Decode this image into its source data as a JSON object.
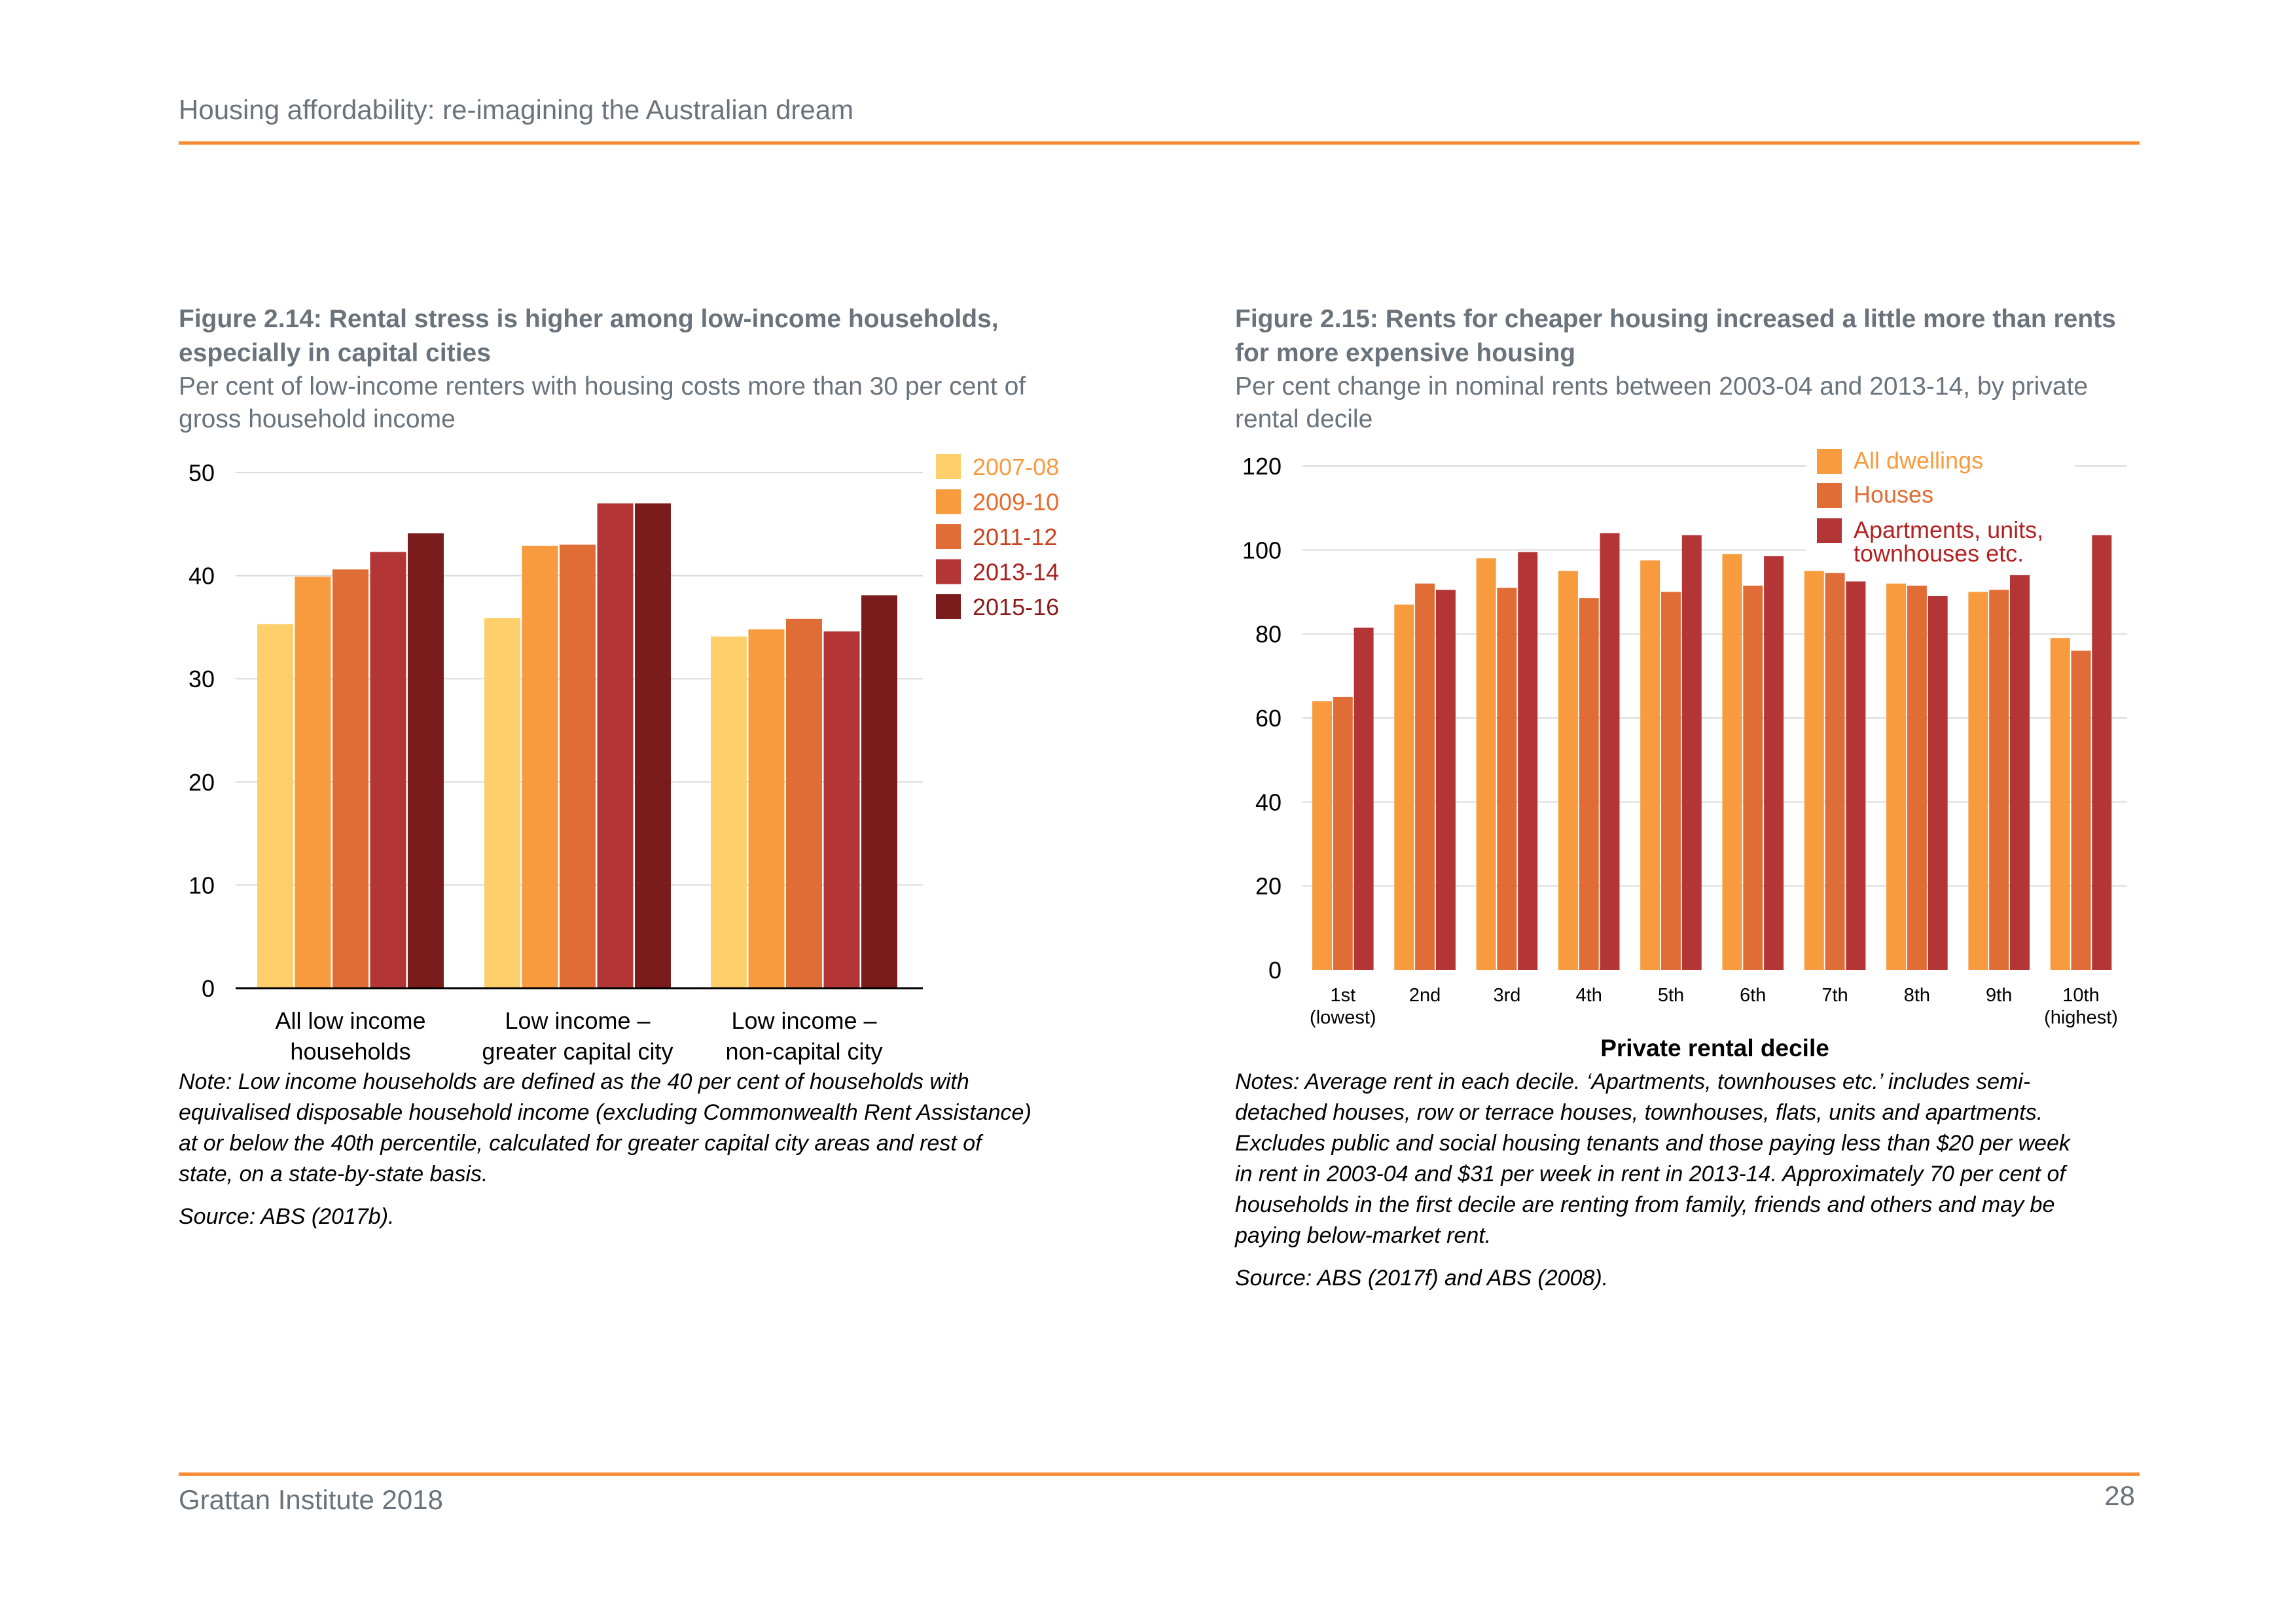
{
  "header": {
    "title": "Housing affordability: re-imagining the Australian dream"
  },
  "footer": {
    "org": "Grattan Institute 2018",
    "page": "28"
  },
  "colors": {
    "accent_rule": "#F68B33",
    "grey_text": "#6A737B",
    "series_2007_08": "#FECF6A",
    "series_2009_10": "#F79B3E",
    "series_2011_12": "#E06D35",
    "series_2013_14": "#B33536",
    "series_2015_16": "#7A1C1C"
  },
  "figure14": {
    "title_line1": "Figure 2.14: Rental stress is higher among low-income households,",
    "title_line2": "especially in capital cities",
    "subtitle_line1": "Per cent of low-income renters with housing costs more than 30 per cent of",
    "subtitle_line2": "gross household income",
    "note_lines": [
      "Note: Low income households are defined as the 40 per cent of households with",
      "equivalised disposable household income (excluding Commonwealth Rent Assistance)",
      "at or below the 40th percentile, calculated for greater capital city areas and rest of",
      "state, on a state-by-state basis."
    ],
    "source": "Source: ABS (2017b)."
  },
  "figure15": {
    "title_line1": "Figure 2.15: Rents for cheaper housing increased a little more than rents",
    "title_line2": "for more expensive housing",
    "subtitle_line1": "Per cent change in nominal rents between 2003-04 and 2013-14, by private",
    "subtitle_line2": "rental decile",
    "note_lines": [
      "Notes: Average rent in each decile. ‘Apartments, townhouses etc.’ includes semi-",
      "detached houses, row or terrace houses, townhouses, flats, units and apartments.",
      "Excludes public and social housing tenants and those paying less than $20 per week",
      "in rent in 2003-04 and $31 per week in rent in 2013-14. Approximately 70 per cent of",
      "households in the first decile are renting from family, friends and others and may be",
      "paying below-market rent."
    ],
    "source": "Source: ABS (2017f) and ABS (2008)."
  },
  "chart_data": [
    {
      "type": "bar",
      "ylim": [
        0,
        50
      ],
      "yticks": [
        0,
        10,
        20,
        30,
        40,
        50
      ],
      "categories": [
        [
          "All low income",
          "households"
        ],
        [
          "Low income –",
          "greater capital city"
        ],
        [
          "Low income –",
          "non-capital city"
        ]
      ],
      "legend": "right",
      "grid": true,
      "series": [
        {
          "name": "2007-08",
          "color": "#FECF6A",
          "label_color": "#F79B3E",
          "values": [
            35.3,
            35.9,
            34.1
          ]
        },
        {
          "name": "2009-10",
          "color": "#F79B3E",
          "label_color": "#E86A2A",
          "values": [
            39.9,
            42.9,
            34.8
          ]
        },
        {
          "name": "2011-12",
          "color": "#E06D35",
          "label_color": "#C8431E",
          "values": [
            40.6,
            43.0,
            35.8
          ]
        },
        {
          "name": "2013-14",
          "color": "#B33536",
          "label_color": "#A8201F",
          "values": [
            42.3,
            47.0,
            34.6
          ]
        },
        {
          "name": "2015-16",
          "color": "#7A1C1C",
          "label_color": "#8B1A1A",
          "values": [
            44.1,
            47.0,
            38.1
          ]
        }
      ]
    },
    {
      "type": "bar",
      "ylim": [
        0,
        120
      ],
      "yticks": [
        0,
        20,
        40,
        60,
        80,
        100,
        120
      ],
      "xlabel": "Private rental decile",
      "categories": [
        [
          "1st",
          "(lowest)"
        ],
        [
          "2nd"
        ],
        [
          "3rd"
        ],
        [
          "4th"
        ],
        [
          "5th"
        ],
        [
          "6th"
        ],
        [
          "7th"
        ],
        [
          "8th"
        ],
        [
          "9th"
        ],
        [
          "10th",
          "(highest)"
        ]
      ],
      "legend": "top-right",
      "grid": true,
      "series": [
        {
          "name": "All dwellings",
          "color": "#F79B3E",
          "label_color": "#F79B3E",
          "values": [
            64,
            87,
            98,
            95,
            97.5,
            99,
            95,
            92,
            90,
            79
          ]
        },
        {
          "name": "Houses",
          "color": "#E06D35",
          "label_color": "#E06D35",
          "values": [
            65,
            92,
            91,
            88.5,
            90,
            91.5,
            94.5,
            91.5,
            90.5,
            76
          ]
        },
        {
          "name": [
            "Apartments, units,",
            "townhouses etc."
          ],
          "color": "#B33536",
          "label_color": "#B22222",
          "values": [
            81.5,
            90.5,
            99.5,
            104,
            103.5,
            98.5,
            92.5,
            89,
            94,
            103.5
          ]
        }
      ]
    }
  ]
}
